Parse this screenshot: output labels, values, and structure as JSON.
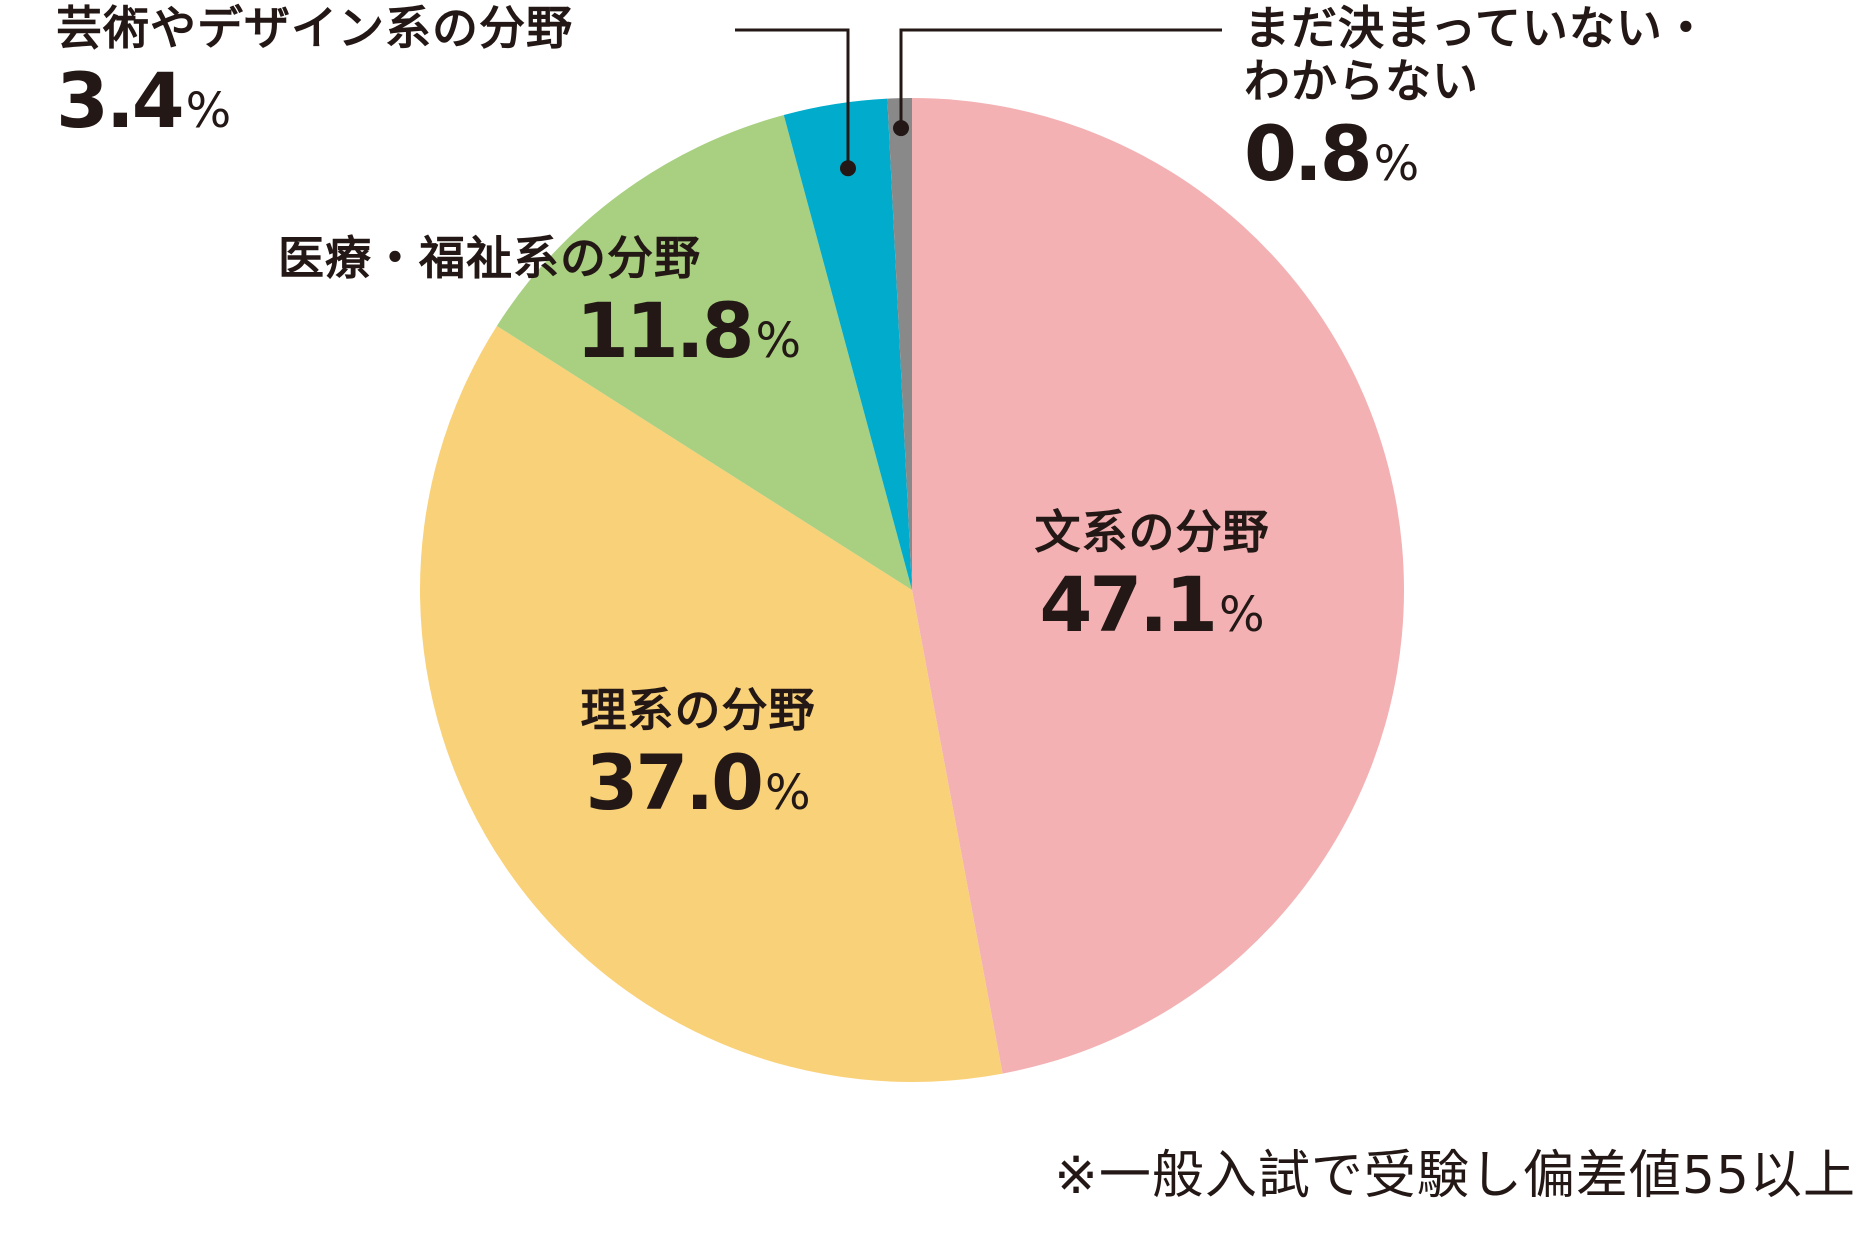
{
  "chart_data": {
    "type": "pie",
    "start_angle_deg": 0,
    "direction": "clockwise",
    "unit": "%",
    "slices": [
      {
        "name": "文系の分野",
        "value": 47.1,
        "value_label": "47.1",
        "color": "#F3B1B3"
      },
      {
        "name": "理系の分野",
        "value": 37.0,
        "value_label": "37.0",
        "color": "#F9D178"
      },
      {
        "name": "医療・福祉系の分野",
        "value": 11.8,
        "value_label": "11.8",
        "color": "#A8D080"
      },
      {
        "name": "芸術やデザイン系の分野",
        "value": 3.4,
        "value_label": "3.4",
        "color": "#00ABCB"
      },
      {
        "name": "まだ決まっていない・わからない",
        "name_lines": [
          "まだ決まっていない・",
          "わからない"
        ],
        "value": 0.8,
        "value_label": "0.8",
        "color": "#898989"
      }
    ],
    "note": "※一般入試で受験し偏差値55以上"
  }
}
